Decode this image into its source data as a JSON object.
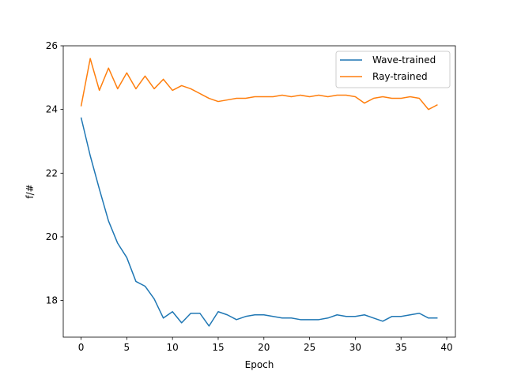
{
  "chart_data": {
    "type": "line",
    "xlabel": "Epoch",
    "ylabel": "f/#",
    "xlim": [
      -1.95,
      40.95
    ],
    "ylim": [
      16.85,
      26.0
    ],
    "xticks": [
      0,
      5,
      10,
      15,
      20,
      25,
      30,
      35,
      40
    ],
    "yticks": [
      18,
      20,
      22,
      24,
      26
    ],
    "grid": false,
    "legend_position": "top-right",
    "x": [
      0,
      1,
      2,
      3,
      4,
      5,
      6,
      7,
      8,
      9,
      10,
      11,
      12,
      13,
      14,
      15,
      16,
      17,
      18,
      19,
      20,
      21,
      22,
      23,
      24,
      25,
      26,
      27,
      28,
      29,
      30,
      31,
      32,
      33,
      34,
      35,
      36,
      37,
      38,
      39
    ],
    "series": [
      {
        "name": "Wave-trained",
        "color": "#1f77b4",
        "values": [
          23.75,
          22.55,
          21.5,
          20.5,
          19.8,
          19.35,
          18.6,
          18.45,
          18.05,
          17.45,
          17.65,
          17.3,
          17.6,
          17.6,
          17.2,
          17.65,
          17.55,
          17.4,
          17.5,
          17.55,
          17.55,
          17.5,
          17.45,
          17.45,
          17.4,
          17.4,
          17.4,
          17.45,
          17.55,
          17.5,
          17.5,
          17.55,
          17.45,
          17.35,
          17.5,
          17.5,
          17.55,
          17.6,
          17.45,
          17.45
        ]
      },
      {
        "name": "Ray-trained",
        "color": "#ff7f0e",
        "values": [
          24.1,
          25.6,
          24.6,
          25.3,
          24.65,
          25.15,
          24.65,
          25.05,
          24.65,
          24.95,
          24.6,
          24.75,
          24.65,
          24.5,
          24.35,
          24.25,
          24.3,
          24.35,
          24.35,
          24.4,
          24.4,
          24.4,
          24.45,
          24.4,
          24.45,
          24.4,
          24.45,
          24.4,
          24.45,
          24.45,
          24.4,
          24.2,
          24.35,
          24.4,
          24.35,
          24.35,
          24.4,
          24.35,
          24.0,
          24.15
        ]
      }
    ]
  }
}
